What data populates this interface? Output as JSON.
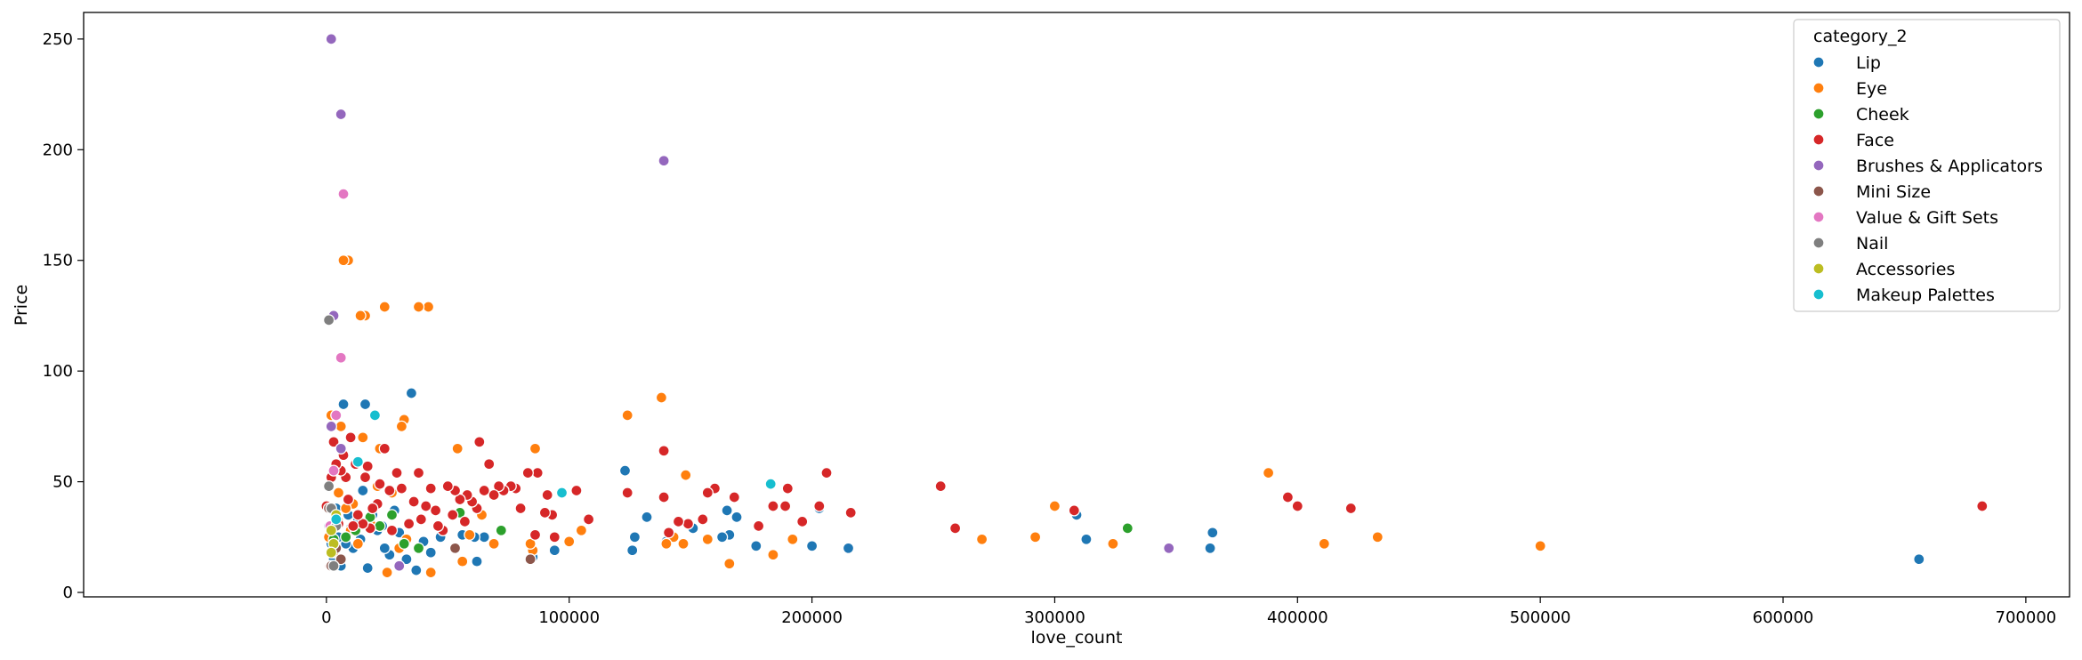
{
  "chart_data": {
    "type": "scatter",
    "title": "",
    "xlabel": "love_count",
    "ylabel": "Price",
    "xlim": [
      -100000,
      718000
    ],
    "ylim": [
      -2,
      262
    ],
    "xticks": [
      0,
      100000,
      200000,
      300000,
      400000,
      500000,
      600000,
      700000
    ],
    "xtick_labels": [
      "0",
      "100000",
      "200000",
      "300000",
      "400000",
      "500000",
      "600000",
      "700000"
    ],
    "yticks": [
      0,
      50,
      100,
      150,
      200,
      250
    ],
    "ytick_labels": [
      "0",
      "50",
      "100",
      "150",
      "200",
      "250"
    ],
    "grid": false,
    "legend": {
      "title": "category_2",
      "placement": "top-right"
    },
    "series": [
      {
        "name": "Lip",
        "color": "#1f77b4",
        "points": [
          [
            656000,
            15
          ],
          [
            365000,
            27
          ],
          [
            364000,
            20
          ],
          [
            313000,
            24
          ],
          [
            309000,
            35
          ],
          [
            215000,
            20
          ],
          [
            203000,
            38
          ],
          [
            200000,
            21
          ],
          [
            177000,
            21
          ],
          [
            169000,
            34
          ],
          [
            166000,
            26
          ],
          [
            165000,
            37
          ],
          [
            163000,
            25
          ],
          [
            151000,
            29
          ],
          [
            140000,
            23
          ],
          [
            132000,
            34
          ],
          [
            127000,
            25
          ],
          [
            126000,
            19
          ],
          [
            123000,
            55
          ],
          [
            94000,
            19
          ],
          [
            85000,
            16
          ],
          [
            65000,
            25
          ],
          [
            62000,
            14
          ],
          [
            61000,
            25
          ],
          [
            56000,
            26
          ],
          [
            53000,
            20
          ],
          [
            47000,
            25
          ],
          [
            43000,
            18
          ],
          [
            40000,
            23
          ],
          [
            37000,
            10
          ],
          [
            35000,
            90
          ],
          [
            33000,
            15
          ],
          [
            30000,
            27
          ],
          [
            28000,
            37
          ],
          [
            26000,
            17
          ],
          [
            24000,
            20
          ],
          [
            23000,
            30
          ],
          [
            21000,
            28
          ],
          [
            19000,
            35
          ],
          [
            17000,
            11
          ],
          [
            16000,
            85
          ],
          [
            15000,
            46
          ],
          [
            14000,
            24
          ],
          [
            13000,
            33
          ],
          [
            11000,
            20
          ],
          [
            10000,
            29
          ],
          [
            9000,
            35
          ],
          [
            8000,
            22
          ],
          [
            7000,
            85
          ],
          [
            6000,
            12
          ],
          [
            5000,
            25
          ],
          [
            4000,
            38
          ],
          [
            3000,
            15
          ],
          [
            2000,
            22
          ],
          [
            1000,
            30
          ]
        ]
      },
      {
        "name": "Eye",
        "color": "#ff7f0e",
        "points": [
          [
            500000,
            21
          ],
          [
            433000,
            25
          ],
          [
            411000,
            22
          ],
          [
            388000,
            54
          ],
          [
            324000,
            22
          ],
          [
            300000,
            39
          ],
          [
            292000,
            25
          ],
          [
            270000,
            24
          ],
          [
            192000,
            24
          ],
          [
            184000,
            17
          ],
          [
            166000,
            13
          ],
          [
            157000,
            24
          ],
          [
            148000,
            53
          ],
          [
            147000,
            22
          ],
          [
            143000,
            25
          ],
          [
            140000,
            22
          ],
          [
            138000,
            88
          ],
          [
            124000,
            80
          ],
          [
            105000,
            28
          ],
          [
            100000,
            23
          ],
          [
            86000,
            65
          ],
          [
            85000,
            19
          ],
          [
            84000,
            22
          ],
          [
            69000,
            22
          ],
          [
            64000,
            35
          ],
          [
            59000,
            26
          ],
          [
            56000,
            14
          ],
          [
            54000,
            65
          ],
          [
            48000,
            28
          ],
          [
            43000,
            9
          ],
          [
            42000,
            129
          ],
          [
            38000,
            129
          ],
          [
            33000,
            24
          ],
          [
            32000,
            78
          ],
          [
            31000,
            75
          ],
          [
            30000,
            20
          ],
          [
            27000,
            45
          ],
          [
            25000,
            9
          ],
          [
            24000,
            129
          ],
          [
            22000,
            65
          ],
          [
            21000,
            48
          ],
          [
            19000,
            30
          ],
          [
            16000,
            125
          ],
          [
            15000,
            70
          ],
          [
            14000,
            125
          ],
          [
            13000,
            22
          ],
          [
            11000,
            40
          ],
          [
            10000,
            28
          ],
          [
            9000,
            150
          ],
          [
            8000,
            38
          ],
          [
            7000,
            150
          ],
          [
            6000,
            75
          ],
          [
            5000,
            45
          ],
          [
            4000,
            80
          ],
          [
            3000,
            18
          ],
          [
            2000,
            80
          ],
          [
            1000,
            25
          ]
        ]
      },
      {
        "name": "Cheek",
        "color": "#2ca02c",
        "points": [
          [
            330000,
            29
          ],
          [
            72000,
            28
          ],
          [
            55000,
            36
          ],
          [
            38000,
            20
          ],
          [
            32000,
            22
          ],
          [
            27000,
            35
          ],
          [
            22000,
            30
          ],
          [
            18000,
            34
          ],
          [
            12000,
            28
          ],
          [
            8000,
            25
          ],
          [
            5000,
            32
          ],
          [
            3000,
            24
          ]
        ]
      },
      {
        "name": "Face",
        "color": "#d62728",
        "points": [
          [
            682000,
            39
          ],
          [
            422000,
            38
          ],
          [
            400000,
            39
          ],
          [
            396000,
            43
          ],
          [
            308000,
            37
          ],
          [
            259000,
            29
          ],
          [
            253000,
            48
          ],
          [
            216000,
            36
          ],
          [
            206000,
            54
          ],
          [
            203000,
            39
          ],
          [
            196000,
            32
          ],
          [
            190000,
            47
          ],
          [
            189000,
            39
          ],
          [
            184000,
            39
          ],
          [
            178000,
            30
          ],
          [
            168000,
            43
          ],
          [
            160000,
            47
          ],
          [
            157000,
            45
          ],
          [
            155000,
            33
          ],
          [
            149000,
            31
          ],
          [
            145000,
            32
          ],
          [
            141000,
            27
          ],
          [
            139000,
            43
          ],
          [
            139000,
            64
          ],
          [
            124000,
            45
          ],
          [
            108000,
            33
          ],
          [
            103000,
            46
          ],
          [
            94000,
            25
          ],
          [
            93000,
            35
          ],
          [
            91000,
            44
          ],
          [
            90000,
            36
          ],
          [
            87000,
            54
          ],
          [
            86000,
            26
          ],
          [
            83000,
            54
          ],
          [
            80000,
            38
          ],
          [
            78000,
            47
          ],
          [
            76000,
            48
          ],
          [
            73000,
            46
          ],
          [
            71000,
            48
          ],
          [
            69000,
            44
          ],
          [
            67000,
            58
          ],
          [
            65000,
            46
          ],
          [
            63000,
            68
          ],
          [
            62000,
            38
          ],
          [
            60000,
            41
          ],
          [
            58000,
            44
          ],
          [
            57000,
            32
          ],
          [
            55000,
            42
          ],
          [
            53000,
            46
          ],
          [
            52000,
            35
          ],
          [
            50000,
            48
          ],
          [
            48000,
            28
          ],
          [
            46000,
            30
          ],
          [
            45000,
            37
          ],
          [
            43000,
            47
          ],
          [
            41000,
            39
          ],
          [
            39000,
            33
          ],
          [
            38000,
            54
          ],
          [
            36000,
            41
          ],
          [
            34000,
            31
          ],
          [
            31000,
            47
          ],
          [
            29000,
            54
          ],
          [
            27000,
            28
          ],
          [
            26000,
            46
          ],
          [
            24000,
            65
          ],
          [
            22000,
            49
          ],
          [
            21000,
            40
          ],
          [
            19000,
            38
          ],
          [
            18000,
            29
          ],
          [
            17000,
            57
          ],
          [
            16000,
            52
          ],
          [
            15000,
            31
          ],
          [
            13000,
            35
          ],
          [
            12000,
            58
          ],
          [
            11000,
            30
          ],
          [
            10000,
            70
          ],
          [
            9000,
            42
          ],
          [
            8000,
            52
          ],
          [
            7000,
            62
          ],
          [
            6000,
            55
          ],
          [
            5000,
            31
          ],
          [
            4000,
            58
          ],
          [
            3000,
            68
          ],
          [
            2000,
            52
          ],
          [
            1500,
            12
          ],
          [
            0,
            39
          ]
        ]
      },
      {
        "name": "Brushes & Applicators",
        "color": "#9467bd",
        "points": [
          [
            2000,
            250
          ],
          [
            6000,
            216
          ],
          [
            139000,
            195
          ],
          [
            3000,
            125
          ],
          [
            347000,
            20
          ],
          [
            2000,
            75
          ],
          [
            6000,
            65
          ],
          [
            30000,
            12
          ]
        ]
      },
      {
        "name": "Mini Size",
        "color": "#8c564b",
        "points": [
          [
            84000,
            15
          ],
          [
            53000,
            20
          ],
          [
            2000,
            12
          ],
          [
            4000,
            20
          ],
          [
            1000,
            38
          ],
          [
            6000,
            15
          ]
        ]
      },
      {
        "name": "Value & Gift Sets",
        "color": "#e377c2",
        "points": [
          [
            7000,
            180
          ],
          [
            6000,
            106
          ],
          [
            4000,
            80
          ],
          [
            3000,
            55
          ],
          [
            1500,
            30
          ]
        ]
      },
      {
        "name": "Nail",
        "color": "#7f7f7f",
        "points": [
          [
            1000,
            123
          ],
          [
            3000,
            12
          ],
          [
            2000,
            38
          ],
          [
            4000,
            30
          ],
          [
            1000,
            48
          ]
        ]
      },
      {
        "name": "Accessories",
        "color": "#bcbd22",
        "points": [
          [
            2000,
            28
          ],
          [
            3000,
            22
          ],
          [
            4000,
            35
          ],
          [
            2000,
            18
          ]
        ]
      },
      {
        "name": "Makeup Palettes",
        "color": "#17becf",
        "points": [
          [
            183000,
            49
          ],
          [
            97000,
            45
          ],
          [
            20000,
            80
          ],
          [
            13000,
            59
          ],
          [
            4000,
            33
          ]
        ]
      }
    ]
  }
}
